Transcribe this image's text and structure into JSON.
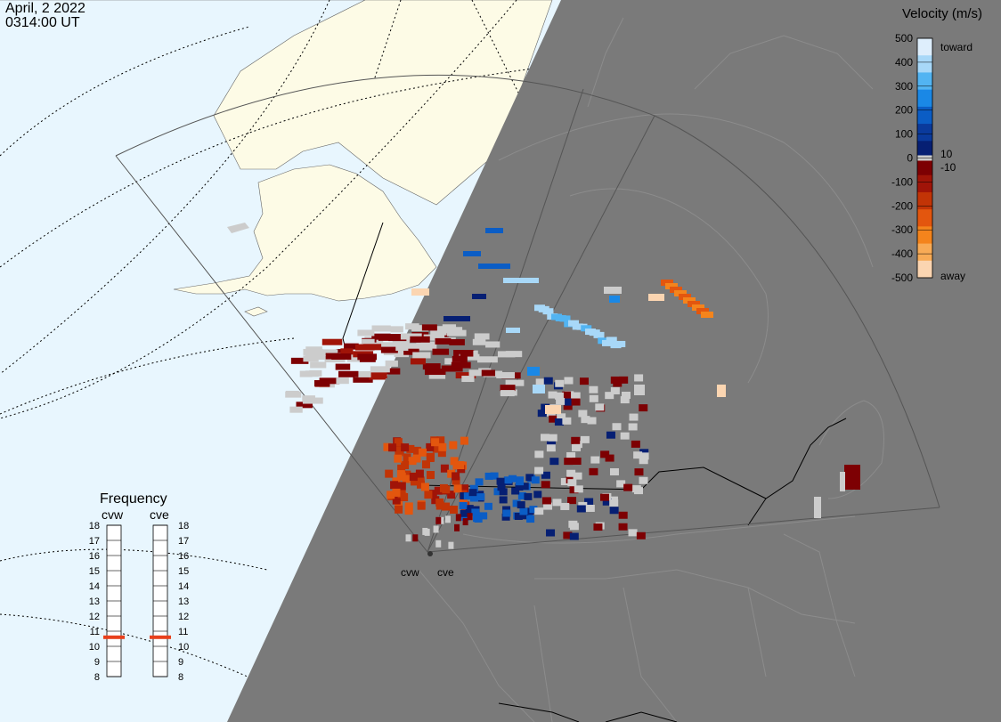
{
  "timestamp": {
    "date": "April, 2 2022",
    "time": "0314:00 UT"
  },
  "radars": [
    {
      "code": "cvw",
      "label": "cvw"
    },
    {
      "code": "cve",
      "label": "cve"
    }
  ],
  "velocity_scale": {
    "title": "Velocity (m/s)",
    "ticks": [
      "500",
      "400",
      "300",
      "200",
      "100",
      "0",
      "-100",
      "-200",
      "-300",
      "-400",
      "-500"
    ],
    "inner_ticks": [
      "10",
      "-10"
    ],
    "toward_label": "toward",
    "away_label": "away",
    "colors": [
      "#deeefc",
      "#a8d8f8",
      "#52b4f2",
      "#1a88e6",
      "#0b5dc5",
      "#0a3a9c",
      "#061f73",
      "#7d0003",
      "#a01408",
      "#c23406",
      "#e3560e",
      "#f4841c",
      "#f8ab56",
      "#fbd5b1"
    ],
    "ground_scatter_color": "#cccccc"
  },
  "frequency_panel": {
    "title": "Frequency",
    "unit_columns": [
      "cvw",
      "cve"
    ],
    "ticks": [
      "18",
      "17",
      "16",
      "15",
      "14",
      "13",
      "12",
      "11",
      "10",
      "9",
      "8"
    ],
    "cvw_mhz": 10.6,
    "cve_mhz": 10.6,
    "marker_color": "#e8401c"
  },
  "map_colors": {
    "ocean": "#e8f6fe",
    "land": "#fdfbe6",
    "night": "#7a7a7a"
  }
}
